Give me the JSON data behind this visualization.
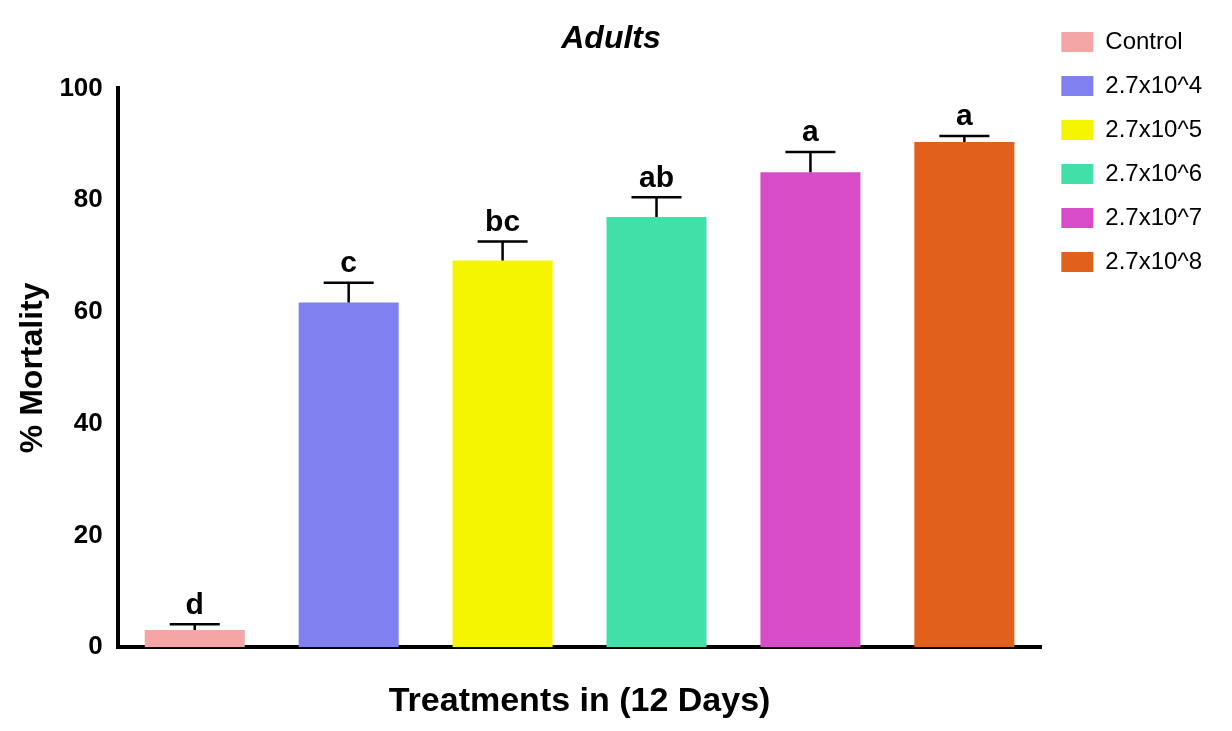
{
  "chart_data": {
    "type": "bar",
    "title": "Adults",
    "xlabel": "Treatments in (12 Days)",
    "ylabel": "% Mortality",
    "categories": [
      null,
      null,
      null,
      null,
      null,
      null
    ],
    "series": [
      {
        "name": "Control",
        "color": "#f4a6a6",
        "values": [
          3.1,
          null,
          null,
          null,
          null,
          null
        ],
        "errors": [
          1.0,
          null,
          null,
          null,
          null,
          null
        ]
      },
      {
        "name": "2.7x10^4",
        "color": "#8080f0",
        "values": [
          null,
          61.7,
          null,
          null,
          null,
          null
        ],
        "errors": [
          null,
          3.5,
          null,
          null,
          null,
          null
        ]
      },
      {
        "name": "2.7x10^5",
        "color": "#f5f500",
        "values": [
          null,
          null,
          69.2,
          null,
          null,
          null
        ],
        "errors": [
          null,
          null,
          3.4,
          null,
          null,
          null
        ]
      },
      {
        "name": "2.7x10^6",
        "color": "#40e0a8",
        "values": [
          null,
          null,
          null,
          77.0,
          null,
          null
        ],
        "errors": [
          null,
          null,
          null,
          3.5,
          null,
          null
        ]
      },
      {
        "name": "2.7x10^7",
        "color": "#d84cc8",
        "values": [
          null,
          null,
          null,
          null,
          85.0,
          null
        ],
        "errors": [
          null,
          null,
          null,
          null,
          3.6,
          null
        ]
      },
      {
        "name": "2.7x10^8",
        "color": "#e0601c",
        "values": [
          null,
          null,
          null,
          null,
          null,
          90.4
        ],
        "errors": [
          null,
          null,
          null,
          null,
          null,
          1.1
        ]
      }
    ],
    "annotations": [
      "d",
      "c",
      "bc",
      "ab",
      "a",
      "a"
    ],
    "ylim": [
      0,
      100
    ],
    "yticks": [
      0,
      20,
      40,
      60,
      80,
      100
    ],
    "grid": false,
    "legend": "right"
  }
}
